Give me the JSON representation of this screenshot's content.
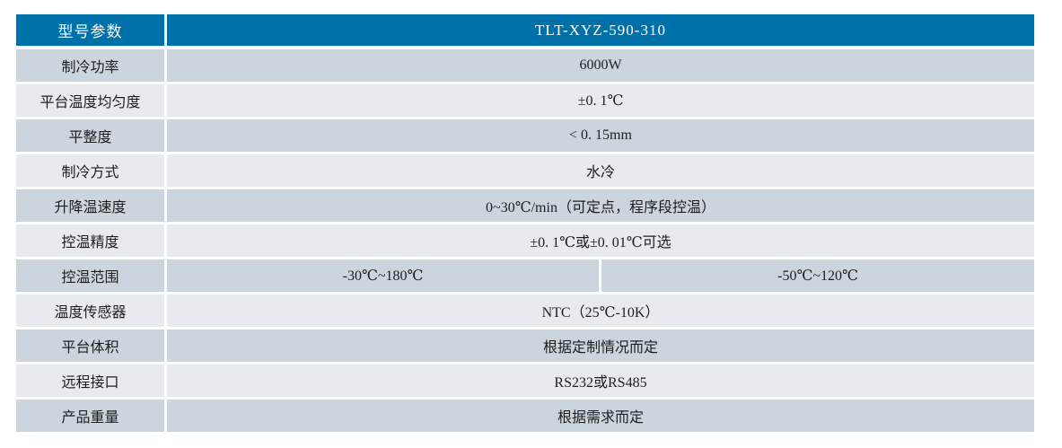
{
  "table": {
    "header": {
      "label": "型号参数",
      "value": "TLT-XYZ-590-310"
    },
    "rows": [
      {
        "label": "制冷功率",
        "value": "6000W"
      },
      {
        "label": "平台温度均匀度",
        "value": "±0. 1℃"
      },
      {
        "label": "平整度",
        "value": "< 0. 15mm"
      },
      {
        "label": "制冷方式",
        "value": "水冷"
      },
      {
        "label": "升降温速度",
        "value": "0~30℃/min（可定点，程序段控温）"
      },
      {
        "label": "控温精度",
        "value": "±0. 1℃或±0. 01℃可选"
      },
      {
        "label": "控温范围",
        "values": [
          "-30℃~180℃",
          "-50℃~120℃"
        ]
      },
      {
        "label": "温度传感器",
        "value": "NTC（25℃-10K）"
      },
      {
        "label": "平台体积",
        "value": "根据定制情况而定"
      },
      {
        "label": "远程接口",
        "value": "RS232或RS485"
      },
      {
        "label": "产品重量",
        "value": "根据需求而定"
      }
    ],
    "colors": {
      "header_bg": "#0070a8",
      "header_text": "#ffffff",
      "row_gray_bg": "#ccd5de",
      "row_light_bg": "#e7eaee",
      "body_text": "#1d1d1f",
      "gap": "#ffffff"
    }
  }
}
